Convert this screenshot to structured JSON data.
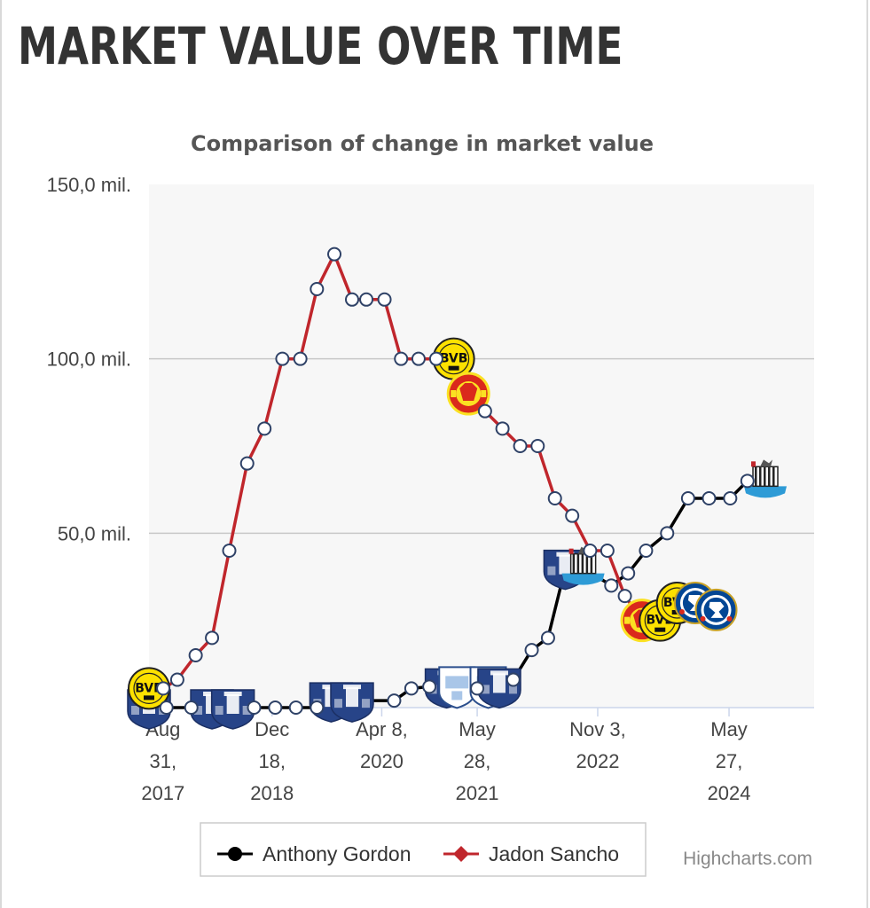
{
  "page": {
    "title": "MARKET VALUE OVER TIME"
  },
  "chart_data": {
    "type": "line",
    "title": "Comparison of change in market value",
    "credits": "Highcharts.com",
    "x_type": "datetime",
    "xlim": [
      "2017-07-01",
      "2025-06-01"
    ],
    "ylim": [
      0,
      150
    ],
    "y_ticks": [
      {
        "value": 50,
        "label": "50,0 mil."
      },
      {
        "value": 100,
        "label": "100,0 mil."
      },
      {
        "value": 150,
        "label": "150,0 mil."
      }
    ],
    "x_ticks": [
      {
        "date": "2017-08-31",
        "lines": [
          "Aug",
          "31,",
          "2017"
        ]
      },
      {
        "date": "2018-12-18",
        "lines": [
          "Dec",
          "18,",
          "2018"
        ]
      },
      {
        "date": "2020-04-08",
        "lines": [
          "Apr 8,",
          "2020"
        ]
      },
      {
        "date": "2021-05-28",
        "lines": [
          "May",
          "28,",
          "2021"
        ]
      },
      {
        "date": "2022-11-03",
        "lines": [
          "Nov 3,",
          "2022"
        ]
      },
      {
        "date": "2024-05-27",
        "lines": [
          "May",
          "27,",
          "2024"
        ]
      }
    ],
    "grid": true,
    "legend_position": "bottom-center",
    "series": [
      {
        "name": "Anthony Gordon",
        "color": "#000000",
        "legend_marker": "circle",
        "points": [
          {
            "x": "2017-07-01",
            "y": 0,
            "crest": "everton"
          },
          {
            "x": "2017-09-15",
            "y": 0
          },
          {
            "x": "2018-01-01",
            "y": 0
          },
          {
            "x": "2018-04-01",
            "y": 0,
            "crest": "everton"
          },
          {
            "x": "2018-07-01",
            "y": 0,
            "crest": "everton"
          },
          {
            "x": "2018-10-01",
            "y": 0
          },
          {
            "x": "2019-01-01",
            "y": 0
          },
          {
            "x": "2019-04-01",
            "y": 0
          },
          {
            "x": "2019-07-01",
            "y": 0
          },
          {
            "x": "2019-09-01",
            "y": 2,
            "crest": "everton"
          },
          {
            "x": "2019-12-01",
            "y": 2,
            "crest": "everton"
          },
          {
            "x": "2020-06-01",
            "y": 2
          },
          {
            "x": "2020-08-15",
            "y": 5.5
          },
          {
            "x": "2020-11-01",
            "y": 6
          },
          {
            "x": "2021-01-15",
            "y": 6,
            "crest": "everton"
          },
          {
            "x": "2021-03-01",
            "y": 6,
            "crest": "preston"
          },
          {
            "x": "2021-05-28",
            "y": 5.5
          },
          {
            "x": "2021-07-15",
            "y": 6,
            "crest": "preston"
          },
          {
            "x": "2021-09-01",
            "y": 6,
            "crest": "everton"
          },
          {
            "x": "2021-11-01",
            "y": 8
          },
          {
            "x": "2022-01-20",
            "y": 16.5
          },
          {
            "x": "2022-04-01",
            "y": 20
          },
          {
            "x": "2022-06-15",
            "y": 40,
            "crest": "everton"
          },
          {
            "x": "2022-09-01",
            "y": 40,
            "crest": "newcastle"
          },
          {
            "x": "2023-01-01",
            "y": 35
          },
          {
            "x": "2023-03-15",
            "y": 38.5
          },
          {
            "x": "2023-06-01",
            "y": 45
          },
          {
            "x": "2023-09-01",
            "y": 50
          },
          {
            "x": "2023-12-01",
            "y": 60
          },
          {
            "x": "2024-03-01",
            "y": 60
          },
          {
            "x": "2024-06-01",
            "y": 60
          },
          {
            "x": "2024-08-15",
            "y": 65
          },
          {
            "x": "2024-11-01",
            "y": 65,
            "crest": "newcastle"
          }
        ]
      },
      {
        "name": "Jadon Sancho",
        "color": "#c0262c",
        "legend_marker": "diamond",
        "points": [
          {
            "x": "2017-07-01",
            "y": 5.5,
            "crest": "bvb"
          },
          {
            "x": "2017-09-01",
            "y": 5.5
          },
          {
            "x": "2017-11-01",
            "y": 8
          },
          {
            "x": "2018-01-20",
            "y": 15
          },
          {
            "x": "2018-04-01",
            "y": 20
          },
          {
            "x": "2018-06-15",
            "y": 45
          },
          {
            "x": "2018-09-01",
            "y": 70
          },
          {
            "x": "2018-11-15",
            "y": 80
          },
          {
            "x": "2019-02-01",
            "y": 100
          },
          {
            "x": "2019-04-20",
            "y": 100
          },
          {
            "x": "2019-07-01",
            "y": 120
          },
          {
            "x": "2019-09-15",
            "y": 130
          },
          {
            "x": "2019-12-01",
            "y": 117
          },
          {
            "x": "2020-02-01",
            "y": 117
          },
          {
            "x": "2020-04-20",
            "y": 117
          },
          {
            "x": "2020-07-01",
            "y": 100
          },
          {
            "x": "2020-09-15",
            "y": 100
          },
          {
            "x": "2020-12-01",
            "y": 100
          },
          {
            "x": "2021-02-15",
            "y": 100,
            "crest": "bvb"
          },
          {
            "x": "2021-04-20",
            "y": 90,
            "crest": "manutd"
          },
          {
            "x": "2021-07-01",
            "y": 85
          },
          {
            "x": "2021-09-15",
            "y": 80
          },
          {
            "x": "2021-12-01",
            "y": 75
          },
          {
            "x": "2022-02-15",
            "y": 75
          },
          {
            "x": "2022-05-01",
            "y": 60
          },
          {
            "x": "2022-07-15",
            "y": 55
          },
          {
            "x": "2022-10-01",
            "y": 45
          },
          {
            "x": "2022-12-15",
            "y": 45
          },
          {
            "x": "2023-03-01",
            "y": 32
          },
          {
            "x": "2023-05-15",
            "y": 25,
            "crest": "manutd"
          },
          {
            "x": "2023-08-01",
            "y": 25,
            "crest": "bvb"
          },
          {
            "x": "2023-10-15",
            "y": 30,
            "crest": "bvb"
          },
          {
            "x": "2024-01-01",
            "y": 30,
            "crest": "chelsea"
          },
          {
            "x": "2024-04-01",
            "y": 28,
            "crest": "chelsea"
          }
        ]
      }
    ]
  }
}
